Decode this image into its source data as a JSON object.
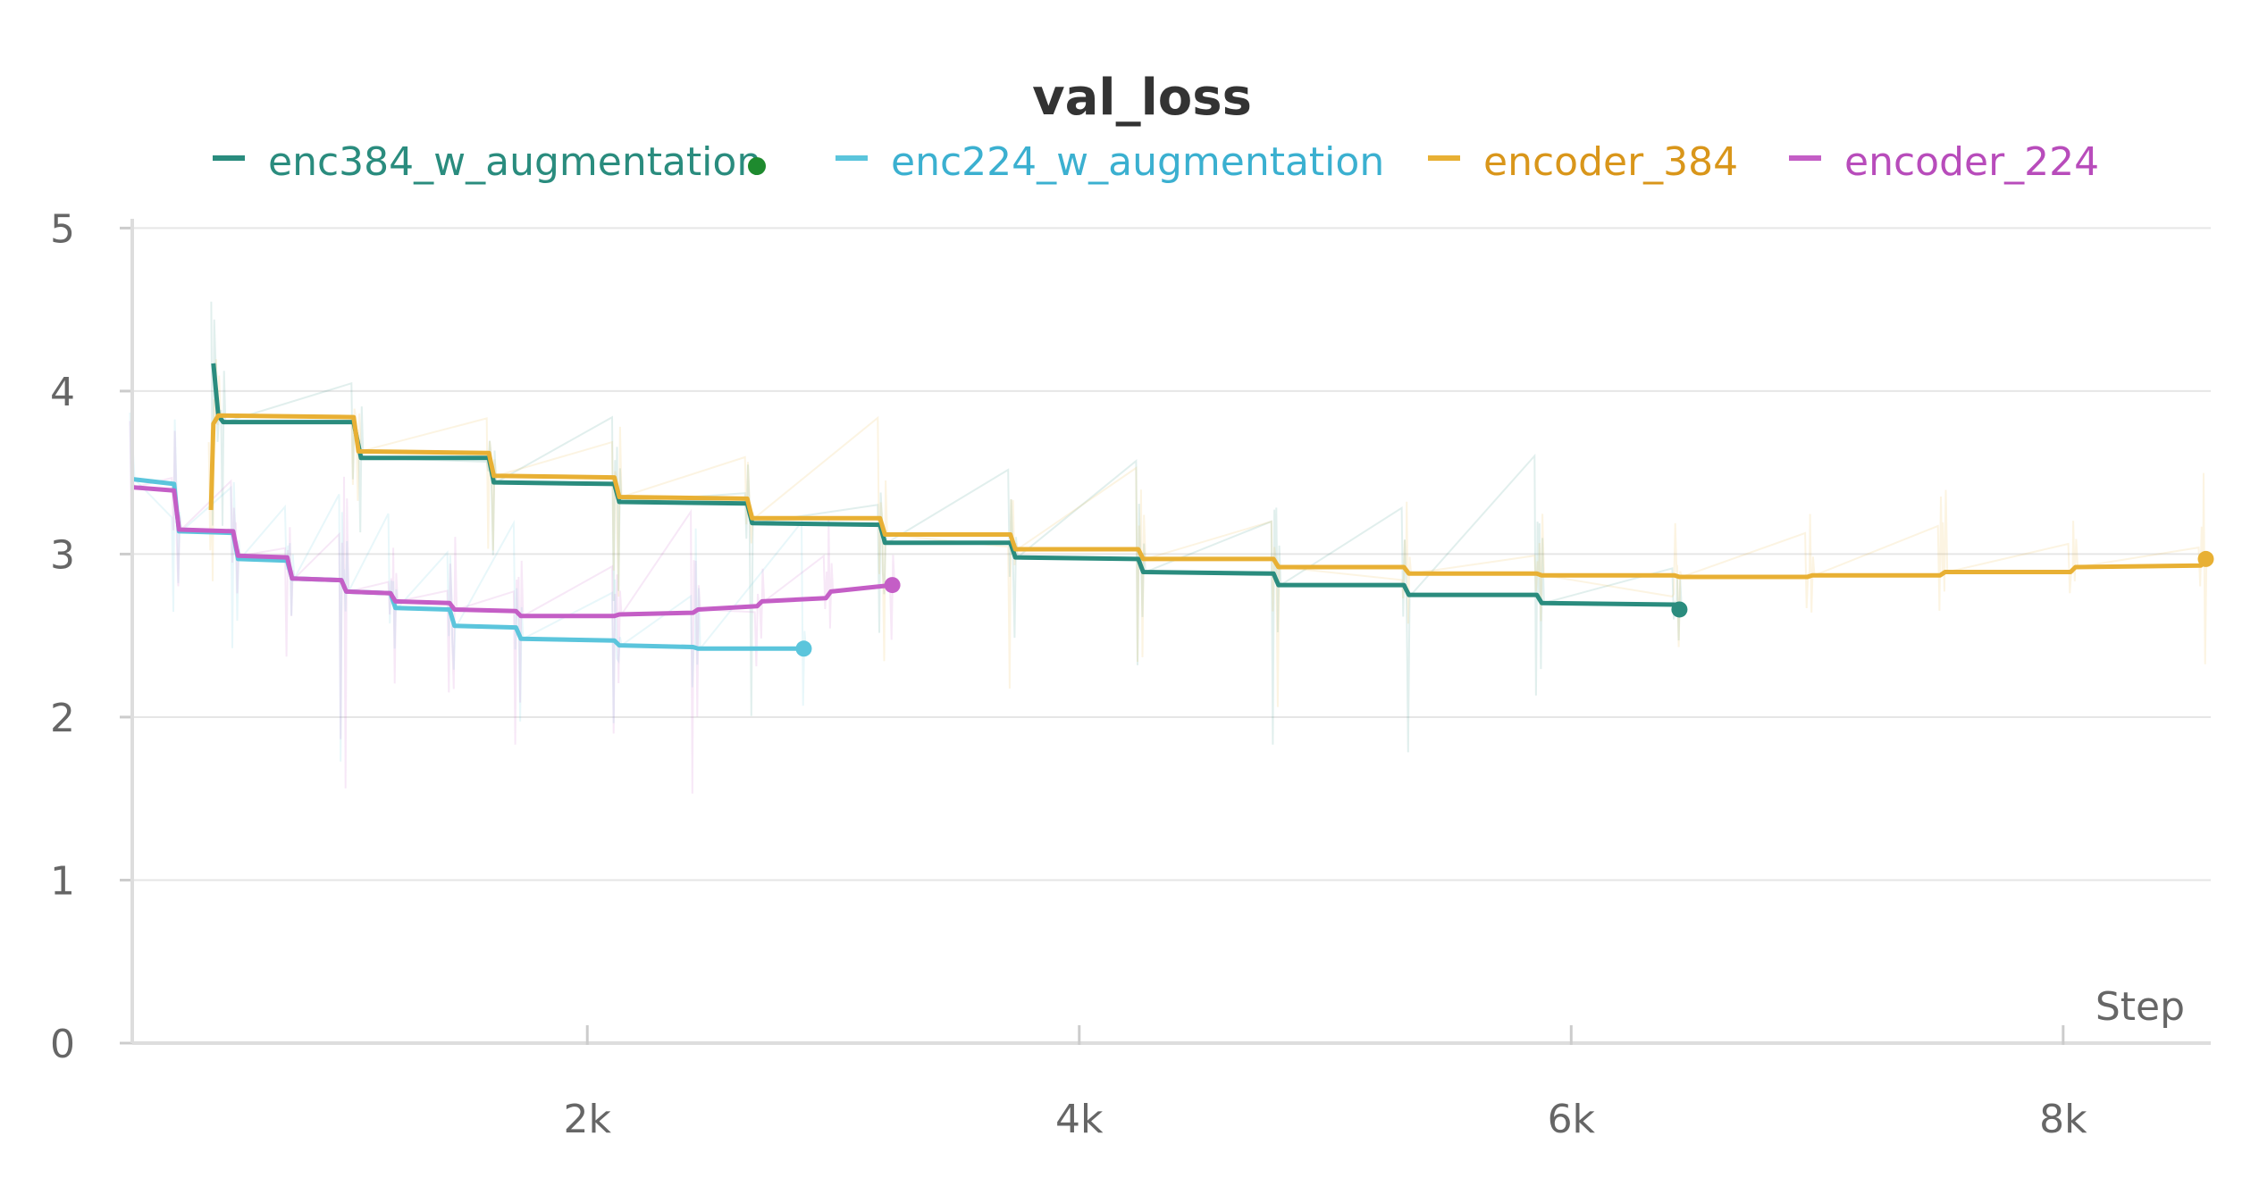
{
  "chart_data": {
    "type": "line",
    "title": "val_loss",
    "xlabel": "Step",
    "ylabel": "",
    "xlim": [
      150,
      8600
    ],
    "ylim": [
      0,
      5.15
    ],
    "x_ticks": [
      {
        "value": 2000,
        "label": "2k"
      },
      {
        "value": 4000,
        "label": "4k"
      },
      {
        "value": 6000,
        "label": "6k"
      },
      {
        "value": 8000,
        "label": "8k"
      }
    ],
    "y_ticks": [
      {
        "value": 0,
        "label": "0"
      },
      {
        "value": 1,
        "label": "1"
      },
      {
        "value": 2,
        "label": "2"
      },
      {
        "value": 3,
        "label": "3"
      },
      {
        "value": 4,
        "label": "4"
      },
      {
        "value": 5,
        "label": "5"
      }
    ],
    "grid": true,
    "legend_position": "top",
    "series": [
      {
        "name": "enc384_w_augmentation",
        "color": "#2a8c7e",
        "legend_dot": true,
        "x": [
          480,
          500,
          520,
          1050,
          1080,
          1600,
          1620,
          2110,
          2130,
          2650,
          2670,
          3190,
          3210,
          3720,
          3740,
          4240,
          4260,
          4790,
          4810,
          5320,
          5340,
          5860,
          5880,
          6420,
          6440
        ],
        "y": [
          4.17,
          3.85,
          3.81,
          3.81,
          3.59,
          3.59,
          3.44,
          3.43,
          3.32,
          3.31,
          3.19,
          3.18,
          3.07,
          3.07,
          2.98,
          2.97,
          2.89,
          2.88,
          2.81,
          2.81,
          2.75,
          2.75,
          2.7,
          2.69,
          2.66
        ]
      },
      {
        "name": "enc224_w_augmentation",
        "color": "#5bc5dc",
        "x": [
          150,
          320,
          340,
          560,
          580,
          780,
          800,
          1000,
          1020,
          1200,
          1220,
          1440,
          1460,
          1710,
          1730,
          2110,
          2130,
          2430,
          2450,
          2880
        ],
        "y": [
          3.46,
          3.43,
          3.14,
          3.13,
          2.97,
          2.96,
          2.85,
          2.84,
          2.77,
          2.76,
          2.67,
          2.66,
          2.56,
          2.55,
          2.48,
          2.47,
          2.44,
          2.43,
          2.42,
          2.42
        ]
      },
      {
        "name": "encoder_384",
        "color": "#e8b034",
        "x": [
          470,
          480,
          500,
          1050,
          1070,
          1600,
          1620,
          2110,
          2130,
          2650,
          2670,
          3190,
          3210,
          3720,
          3740,
          4240,
          4260,
          4790,
          4810,
          5320,
          5340,
          5860,
          5880,
          6420,
          6440,
          6960,
          6980,
          7500,
          7520,
          8030,
          8050,
          8560,
          8580
        ],
        "y": [
          3.27,
          3.8,
          3.85,
          3.84,
          3.63,
          3.62,
          3.48,
          3.47,
          3.35,
          3.34,
          3.22,
          3.22,
          3.12,
          3.12,
          3.03,
          3.03,
          2.97,
          2.97,
          2.92,
          2.92,
          2.88,
          2.88,
          2.87,
          2.87,
          2.86,
          2.86,
          2.87,
          2.87,
          2.89,
          2.89,
          2.92,
          2.93,
          2.97
        ]
      },
      {
        "name": "encoder_224",
        "color": "#c45ec6",
        "x": [
          150,
          320,
          340,
          560,
          580,
          780,
          800,
          1000,
          1020,
          1200,
          1220,
          1440,
          1460,
          1710,
          1730,
          2110,
          2130,
          2430,
          2450,
          2690,
          2710,
          2970,
          2990,
          3240
        ],
        "y": [
          3.41,
          3.39,
          3.15,
          3.14,
          2.99,
          2.98,
          2.85,
          2.84,
          2.77,
          2.76,
          2.71,
          2.7,
          2.66,
          2.65,
          2.62,
          2.62,
          2.63,
          2.64,
          2.66,
          2.68,
          2.71,
          2.73,
          2.77,
          2.81
        ]
      }
    ]
  }
}
